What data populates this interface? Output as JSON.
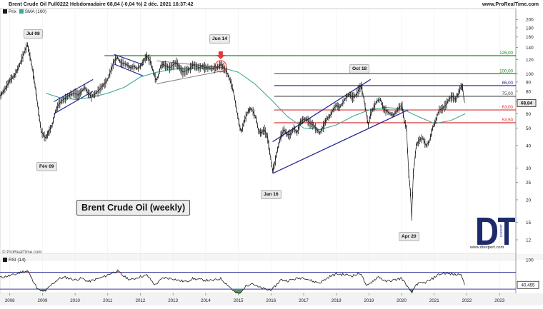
{
  "header": {
    "title": "Brent Crude Oil Full0222 Hebdomadaire 68,84 (-0,04 %) 2 déc. 2021 16:37:42",
    "site": "www.ProRealTime.com"
  },
  "legend": {
    "price_label": "Prix",
    "sma_label": "SMA (100)"
  },
  "copyright": "© ProRealTime.com",
  "rsi_label": "RSI (14)",
  "logo": {
    "text": "DT",
    "subtext": "EXPERT",
    "url": "www.dtexpert.com"
  },
  "colors": {
    "price": "#1a1a1a",
    "sma": "#3aa99a",
    "resistance_green": "#1c8a1c",
    "level_navy": "#1d1f8c",
    "level_red": "#d93131",
    "level_dark": "#444444",
    "channel": "#2a2a9a",
    "triangle_gray": "#888888",
    "marker_red": "#e03a3a",
    "rsi_line": "#1a1a1a",
    "rsi_upper": "#2a2a9a",
    "rsi_lower": "#3a3aaa",
    "rsi_overbought_fill": "#d9534f",
    "rsi_oversold_fill": "#5a9a5a"
  },
  "annotations": [
    {
      "label": "Jul 08"
    },
    {
      "label": "Fév 09"
    },
    {
      "label": "Jun 14"
    },
    {
      "label": "Jan 16"
    },
    {
      "label": "Oct 18"
    },
    {
      "label": "Apr 20"
    }
  ],
  "chart_label": "Brent Crude Oil (weekly)",
  "chart_data": {
    "type": "line",
    "title": "Brent Crude Oil Full0222 Hebdomadaire",
    "last_price": "68,84",
    "change": "-0,04 %",
    "y_scale": "log",
    "ylim": [
      10,
      230
    ],
    "xlim": [
      2007.7,
      2023.5
    ],
    "x_ticks": [
      "2008",
      "2009",
      "2010",
      "2011",
      "2012",
      "2013",
      "2014",
      "2015",
      "2016",
      "2017",
      "2018",
      "2019",
      "2020",
      "2021",
      "2022",
      "2023"
    ],
    "y_ticks": [
      "12",
      "15",
      "20",
      "25",
      "30",
      "40",
      "50",
      "60",
      "70",
      "80",
      "90",
      "100",
      "120",
      "140",
      "160",
      "180",
      "200"
    ],
    "levels": [
      {
        "label": "126,00",
        "value": 126,
        "color": "resistance_green"
      },
      {
        "label": "100,00",
        "value": 100,
        "color": "resistance_green"
      },
      {
        "label": "86,00",
        "value": 86,
        "color": "level_navy"
      },
      {
        "label": "75,00",
        "value": 75,
        "color": "level_dark"
      },
      {
        "label": "63,00",
        "value": 63,
        "color": "level_red"
      },
      {
        "label": "53,50",
        "value": 53.5,
        "color": "level_red"
      }
    ],
    "series": [
      {
        "name": "Prix",
        "points": [
          [
            2007.7,
            75
          ],
          [
            2007.85,
            82
          ],
          [
            2008.0,
            92
          ],
          [
            2008.15,
            98
          ],
          [
            2008.3,
            112
          ],
          [
            2008.4,
            125
          ],
          [
            2008.5,
            140
          ],
          [
            2008.54,
            145
          ],
          [
            2008.62,
            125
          ],
          [
            2008.72,
            100
          ],
          [
            2008.8,
            80
          ],
          [
            2008.88,
            62
          ],
          [
            2008.96,
            48
          ],
          [
            2009.06,
            45
          ],
          [
            2009.1,
            44
          ],
          [
            2009.18,
            47
          ],
          [
            2009.3,
            52
          ],
          [
            2009.4,
            62
          ],
          [
            2009.5,
            68
          ],
          [
            2009.6,
            71
          ],
          [
            2009.7,
            73
          ],
          [
            2009.8,
            76
          ],
          [
            2009.9,
            77
          ],
          [
            2010.0,
            78
          ],
          [
            2010.1,
            76
          ],
          [
            2010.2,
            80
          ],
          [
            2010.3,
            84
          ],
          [
            2010.4,
            78
          ],
          [
            2010.5,
            75
          ],
          [
            2010.6,
            77
          ],
          [
            2010.7,
            80
          ],
          [
            2010.8,
            84
          ],
          [
            2010.9,
            88
          ],
          [
            2011.0,
            93
          ],
          [
            2011.1,
            105
          ],
          [
            2011.2,
            118
          ],
          [
            2011.3,
            123
          ],
          [
            2011.4,
            115
          ],
          [
            2011.5,
            114
          ],
          [
            2011.6,
            112
          ],
          [
            2011.7,
            108
          ],
          [
            2011.8,
            110
          ],
          [
            2011.9,
            107
          ],
          [
            2012.0,
            110
          ],
          [
            2012.12,
            120
          ],
          [
            2012.2,
            125
          ],
          [
            2012.3,
            118
          ],
          [
            2012.4,
            102
          ],
          [
            2012.48,
            92
          ],
          [
            2012.55,
            97
          ],
          [
            2012.62,
            110
          ],
          [
            2012.7,
            113
          ],
          [
            2012.8,
            110
          ],
          [
            2012.9,
            108
          ],
          [
            2013.0,
            112
          ],
          [
            2013.1,
            115
          ],
          [
            2013.2,
            108
          ],
          [
            2013.3,
            102
          ],
          [
            2013.4,
            104
          ],
          [
            2013.5,
            106
          ],
          [
            2013.6,
            112
          ],
          [
            2013.7,
            110
          ],
          [
            2013.8,
            108
          ],
          [
            2013.9,
            110
          ],
          [
            2014.0,
            108
          ],
          [
            2014.1,
            108
          ],
          [
            2014.2,
            107
          ],
          [
            2014.3,
            108
          ],
          [
            2014.4,
            110
          ],
          [
            2014.46,
            113
          ],
          [
            2014.55,
            108
          ],
          [
            2014.65,
            102
          ],
          [
            2014.75,
            92
          ],
          [
            2014.85,
            80
          ],
          [
            2014.95,
            63
          ],
          [
            2015.05,
            50
          ],
          [
            2015.1,
            48
          ],
          [
            2015.2,
            56
          ],
          [
            2015.3,
            62
          ],
          [
            2015.38,
            64
          ],
          [
            2015.45,
            62
          ],
          [
            2015.55,
            56
          ],
          [
            2015.62,
            48
          ],
          [
            2015.7,
            47
          ],
          [
            2015.8,
            49
          ],
          [
            2015.9,
            44
          ],
          [
            2015.96,
            37
          ],
          [
            2016.05,
            29
          ],
          [
            2016.1,
            31
          ],
          [
            2016.2,
            38
          ],
          [
            2016.3,
            45
          ],
          [
            2016.4,
            49
          ],
          [
            2016.5,
            46
          ],
          [
            2016.6,
            46
          ],
          [
            2016.7,
            50
          ],
          [
            2016.8,
            47
          ],
          [
            2016.9,
            54
          ],
          [
            2017.0,
            56
          ],
          [
            2017.1,
            56
          ],
          [
            2017.2,
            53
          ],
          [
            2017.3,
            52
          ],
          [
            2017.4,
            49
          ],
          [
            2017.5,
            47
          ],
          [
            2017.6,
            51
          ],
          [
            2017.7,
            56
          ],
          [
            2017.8,
            58
          ],
          [
            2017.9,
            63
          ],
          [
            2018.0,
            67
          ],
          [
            2018.1,
            65
          ],
          [
            2018.2,
            69
          ],
          [
            2018.3,
            74
          ],
          [
            2018.4,
            77
          ],
          [
            2018.5,
            74
          ],
          [
            2018.6,
            76
          ],
          [
            2018.7,
            82
          ],
          [
            2018.76,
            86
          ],
          [
            2018.85,
            72
          ],
          [
            2018.92,
            60
          ],
          [
            2018.98,
            52
          ],
          [
            2019.05,
            60
          ],
          [
            2019.15,
            65
          ],
          [
            2019.25,
            71
          ],
          [
            2019.35,
            72
          ],
          [
            2019.45,
            64
          ],
          [
            2019.55,
            62
          ],
          [
            2019.65,
            60
          ],
          [
            2019.75,
            59
          ],
          [
            2019.85,
            62
          ],
          [
            2019.95,
            66
          ],
          [
            2020.02,
            66
          ],
          [
            2020.08,
            55
          ],
          [
            2020.15,
            50
          ],
          [
            2020.22,
            28
          ],
          [
            2020.27,
            22
          ],
          [
            2020.31,
            16
          ],
          [
            2020.36,
            28
          ],
          [
            2020.45,
            40
          ],
          [
            2020.55,
            43
          ],
          [
            2020.65,
            44
          ],
          [
            2020.75,
            40
          ],
          [
            2020.85,
            42
          ],
          [
            2020.95,
            50
          ],
          [
            2021.05,
            55
          ],
          [
            2021.15,
            63
          ],
          [
            2021.25,
            64
          ],
          [
            2021.35,
            67
          ],
          [
            2021.45,
            72
          ],
          [
            2021.55,
            75
          ],
          [
            2021.65,
            72
          ],
          [
            2021.75,
            78
          ],
          [
            2021.82,
            85
          ],
          [
            2021.87,
            84
          ],
          [
            2021.91,
            73
          ],
          [
            2021.93,
            69
          ]
        ]
      },
      {
        "name": "SMA (100)",
        "points": [
          [
            2009.1,
            78
          ],
          [
            2009.5,
            74
          ],
          [
            2010.0,
            72
          ],
          [
            2010.5,
            74
          ],
          [
            2011.0,
            78
          ],
          [
            2011.5,
            84
          ],
          [
            2012.0,
            96
          ],
          [
            2012.5,
            102
          ],
          [
            2013.0,
            106
          ],
          [
            2013.5,
            107
          ],
          [
            2014.0,
            107
          ],
          [
            2014.5,
            108
          ],
          [
            2015.0,
            102
          ],
          [
            2015.5,
            88
          ],
          [
            2016.0,
            72
          ],
          [
            2016.5,
            58
          ],
          [
            2017.0,
            50
          ],
          [
            2017.5,
            49
          ],
          [
            2018.0,
            52
          ],
          [
            2018.5,
            58
          ],
          [
            2019.0,
            63
          ],
          [
            2019.5,
            65
          ],
          [
            2020.0,
            64
          ],
          [
            2020.5,
            58
          ],
          [
            2021.0,
            53
          ],
          [
            2021.5,
            55
          ],
          [
            2021.95,
            60
          ]
        ]
      }
    ],
    "rsi": {
      "name": "RSI (14)",
      "ylim": [
        20,
        100
      ],
      "levels": [
        70,
        30
      ],
      "y_ticks": [
        "100"
      ],
      "last_value_label": "40,455",
      "values": [
        [
          2007.7,
          58
        ],
        [
          2008.0,
          62
        ],
        [
          2008.2,
          66
        ],
        [
          2008.4,
          72
        ],
        [
          2008.55,
          73
        ],
        [
          2008.7,
          52
        ],
        [
          2008.85,
          30
        ],
        [
          2009.0,
          24
        ],
        [
          2009.1,
          26
        ],
        [
          2009.3,
          42
        ],
        [
          2009.5,
          55
        ],
        [
          2009.7,
          58
        ],
        [
          2010.0,
          52
        ],
        [
          2010.2,
          56
        ],
        [
          2010.4,
          48
        ],
        [
          2010.6,
          52
        ],
        [
          2010.9,
          60
        ],
        [
          2011.1,
          68
        ],
        [
          2011.3,
          73
        ],
        [
          2011.5,
          60
        ],
        [
          2011.7,
          52
        ],
        [
          2012.0,
          60
        ],
        [
          2012.2,
          63
        ],
        [
          2012.45,
          40
        ],
        [
          2012.7,
          57
        ],
        [
          2013.0,
          55
        ],
        [
          2013.2,
          50
        ],
        [
          2013.4,
          48
        ],
        [
          2013.6,
          55
        ],
        [
          2013.9,
          52
        ],
        [
          2014.2,
          50
        ],
        [
          2014.46,
          55
        ],
        [
          2014.7,
          38
        ],
        [
          2014.9,
          22
        ],
        [
          2015.05,
          18
        ],
        [
          2015.2,
          35
        ],
        [
          2015.4,
          45
        ],
        [
          2015.6,
          35
        ],
        [
          2015.9,
          28
        ],
        [
          2016.05,
          30
        ],
        [
          2016.3,
          52
        ],
        [
          2016.5,
          50
        ],
        [
          2016.8,
          55
        ],
        [
          2017.0,
          58
        ],
        [
          2017.3,
          48
        ],
        [
          2017.5,
          45
        ],
        [
          2017.8,
          60
        ],
        [
          2018.0,
          66
        ],
        [
          2018.3,
          64
        ],
        [
          2018.5,
          62
        ],
        [
          2018.76,
          68
        ],
        [
          2018.92,
          36
        ],
        [
          2019.05,
          45
        ],
        [
          2019.3,
          60
        ],
        [
          2019.5,
          48
        ],
        [
          2019.8,
          52
        ],
        [
          2020.0,
          56
        ],
        [
          2020.15,
          40
        ],
        [
          2020.25,
          26
        ],
        [
          2020.32,
          22
        ],
        [
          2020.45,
          42
        ],
        [
          2020.7,
          45
        ],
        [
          2020.9,
          52
        ],
        [
          2021.1,
          64
        ],
        [
          2021.3,
          68
        ],
        [
          2021.5,
          66
        ],
        [
          2021.7,
          64
        ],
        [
          2021.82,
          68
        ],
        [
          2021.93,
          40
        ]
      ]
    }
  }
}
